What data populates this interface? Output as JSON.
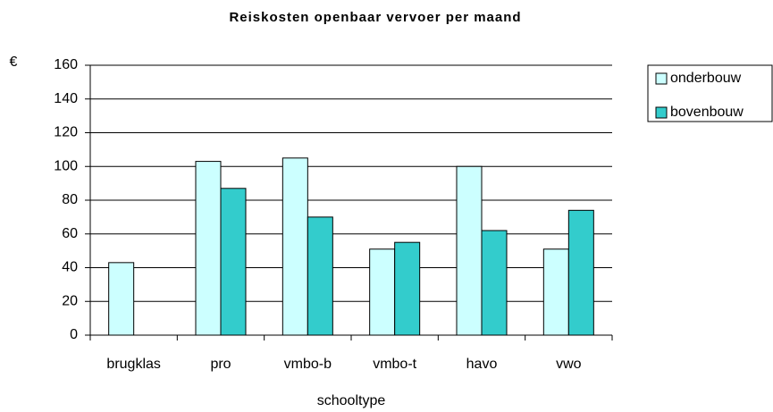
{
  "chart_data": {
    "type": "bar",
    "title": "Reiskosten openbaar vervoer per maand",
    "y_label": "€",
    "x_label": "schooltype",
    "categories": [
      "brugklas",
      "pro",
      "vmbo-b",
      "vmbo-t",
      "havo",
      "vwo"
    ],
    "series": [
      {
        "name": "onderbouw",
        "color": "#ccffff",
        "values": [
          43,
          103,
          105,
          51,
          100,
          51
        ]
      },
      {
        "name": "bovenbouw",
        "color": "#33cccc",
        "values": [
          null,
          87,
          70,
          55,
          62,
          74
        ]
      }
    ],
    "ylim": [
      0,
      160
    ],
    "yticks": [
      0,
      20,
      40,
      60,
      80,
      100,
      120,
      140,
      160
    ],
    "grid": true,
    "legend": "right"
  }
}
